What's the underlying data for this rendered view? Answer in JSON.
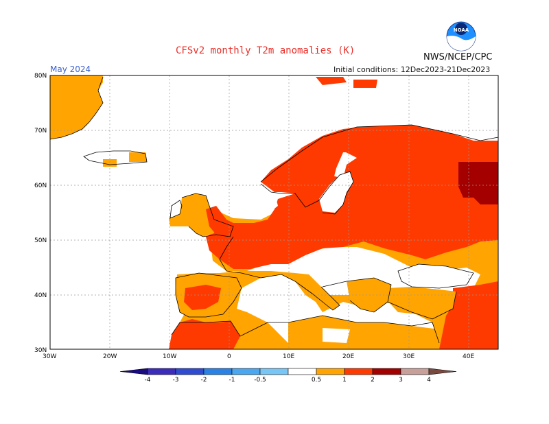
{
  "header": {
    "title": "CFSv2 monthly T2m anomalies (K)",
    "agency": "NWS/NCEP/CPC",
    "valid_month": "May 2024",
    "initial_conditions": "Initial conditions: 12Dec2023-21Dec2023",
    "logo_text": "NOAA"
  },
  "map": {
    "lon_range": [
      -30,
      45
    ],
    "lat_range": [
      30,
      80
    ],
    "lon_ticks": [
      "30W",
      "20W",
      "10W",
      "0",
      "10E",
      "20E",
      "30E",
      "40E"
    ],
    "lat_ticks": [
      "30N",
      "40N",
      "50N",
      "60N",
      "70N",
      "80N"
    ],
    "gridlines": true,
    "anomaly_colors": {
      "0.5-1": "#ffa400",
      "1-2": "#ff3a00",
      "2-3": "#a50000",
      "3-4": "#c8a09a"
    },
    "ocean_color": "#ffffff"
  },
  "colorbar": {
    "labels": [
      "-4",
      "-3",
      "-2",
      "-1",
      "-0.5",
      "0.5",
      "1",
      "2",
      "3",
      "4"
    ],
    "colors": [
      "#3b2cbc",
      "#2e4bd2",
      "#2b82e6",
      "#4aa7f0",
      "#78c6f5",
      "#ffffff",
      "#ffa400",
      "#ff3a00",
      "#a50000",
      "#c8a09a"
    ],
    "min_color": "#1a0b80",
    "max_color": "#7a4a40"
  }
}
